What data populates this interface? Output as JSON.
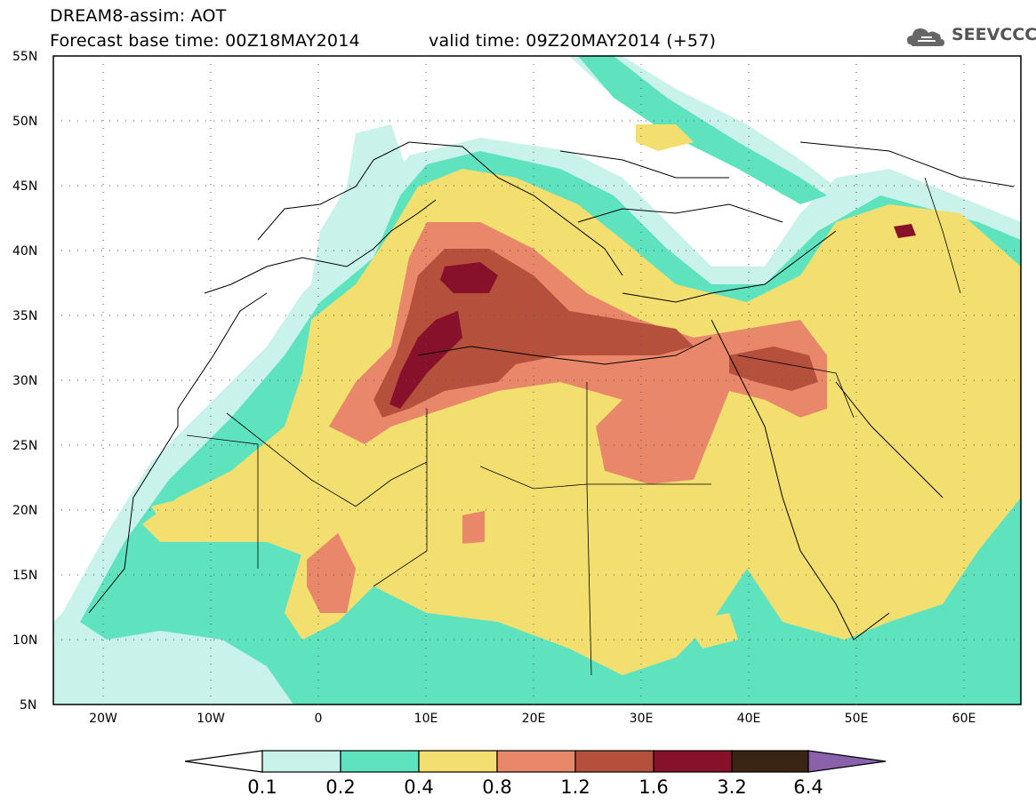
{
  "header": {
    "line1": "DREAM8-assim: AOT",
    "line2": "Forecast base time: 00Z18MAY2014",
    "line2b": "valid time: 09Z20MAY2014 (+57)",
    "logo": "SEEVCCC"
  },
  "colors": {
    "c1": "#c9f3ea",
    "c2": "#5fe3bf",
    "c3": "#f3df6f",
    "c4": "#e8876a",
    "c5": "#b4503c",
    "c6": "#87102a",
    "c7": "#3a2515",
    "c8": "#8a62ac",
    "land": "#ffffff",
    "border": "#000000"
  },
  "map": {
    "lat_labels": [
      "55N",
      "50N",
      "45N",
      "40N",
      "35N",
      "30N",
      "25N",
      "20N",
      "15N",
      "10N",
      "5N"
    ],
    "lon_labels": [
      "20W",
      "10W",
      "0",
      "10E",
      "20E",
      "30E",
      "40E",
      "50E",
      "60E"
    ]
  },
  "colorbar": {
    "labels": [
      "0.1",
      "0.2",
      "0.4",
      "0.8",
      "1.2",
      "1.6",
      "3.2",
      "6.4"
    ]
  }
}
